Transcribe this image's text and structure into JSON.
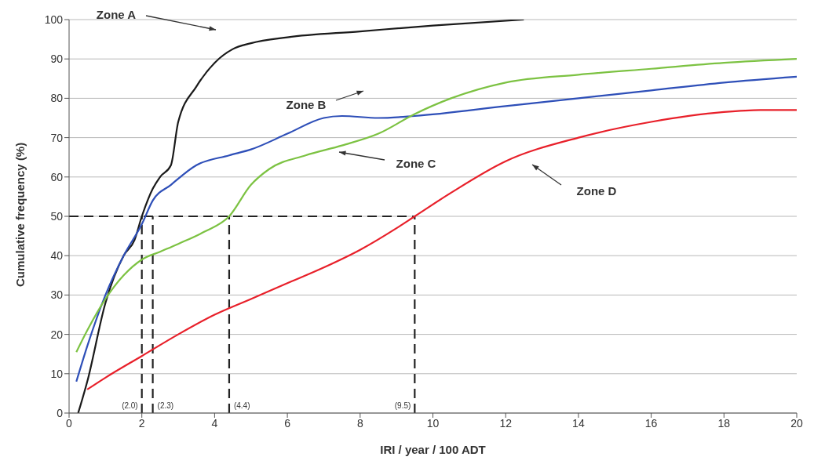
{
  "chart_data": {
    "type": "line",
    "xlabel": "IRI / year / 100 ADT",
    "ylabel": "Cumulative frequency (%)",
    "xlim": [
      0,
      20
    ],
    "xticks": [
      0,
      2,
      4,
      6,
      8,
      10,
      12,
      14,
      16,
      18,
      20
    ],
    "ylim": [
      0,
      100
    ],
    "yticks": [
      0,
      10,
      20,
      30,
      40,
      50,
      60,
      70,
      80,
      90,
      100
    ],
    "grid": "y",
    "line_style": "solid",
    "marker": "none",
    "series": [
      {
        "color": "#1a1a1a",
        "x": [
          0.25,
          0.5,
          1,
          1.5,
          1.8,
          2,
          2.3,
          2.5,
          2.8,
          3,
          3.5,
          4,
          4.5,
          5,
          6,
          8,
          10,
          12.5
        ],
        "values": [
          0,
          8,
          28,
          40,
          44,
          50,
          57,
          60,
          63,
          74,
          83,
          89,
          92.5,
          94,
          95.5,
          97,
          98.5,
          100
        ]
      },
      {
        "color": "#2e4fb8",
        "x": [
          0.2,
          0.5,
          1,
          1.5,
          2,
          2.3,
          2.8,
          3.5,
          4.4,
          5,
          6,
          7,
          7.5,
          8.5,
          9.5,
          12,
          14,
          16,
          18,
          20
        ],
        "values": [
          8,
          17,
          30,
          40,
          48,
          54,
          58,
          63,
          65.5,
          67,
          71,
          75,
          75.5,
          75,
          75.5,
          78,
          80,
          82,
          84,
          85.5
        ]
      },
      {
        "color": "#7cc242",
        "x": [
          0.2,
          0.5,
          1,
          1.5,
          2,
          2.5,
          3,
          3.7,
          4.4,
          5,
          5.5,
          6.5,
          7.5,
          8.5,
          9.5,
          10.5,
          12,
          14,
          16,
          18,
          20
        ],
        "values": [
          15.5,
          21,
          29,
          35,
          39,
          41,
          43,
          46,
          50,
          58,
          62,
          65.5,
          68,
          71,
          76,
          80,
          84,
          86,
          87.5,
          89,
          90
        ]
      },
      {
        "color": "#e8202a",
        "x": [
          0.5,
          1,
          2,
          3,
          4,
          5,
          6,
          7,
          8,
          9,
          9.5,
          10.5,
          12,
          14,
          16,
          18,
          19,
          20
        ],
        "values": [
          6,
          9,
          14.5,
          20,
          25,
          29,
          33,
          37,
          41.5,
          47,
          50,
          56,
          64,
          70,
          74,
          76.5,
          77,
          77
        ]
      }
    ],
    "ref_lines": [
      {
        "axis": "y",
        "value": 50,
        "color": "#222222",
        "line_style": "dashed"
      },
      {
        "axis": "x",
        "value": 2.0,
        "label": "(2.0)",
        "color": "#222222",
        "line_style": "dashed"
      },
      {
        "axis": "x",
        "value": 2.3,
        "label": "(2.3)",
        "color": "#222222",
        "line_style": "dashed"
      },
      {
        "axis": "x",
        "value": 4.4,
        "label": "(4.4)",
        "color": "#222222",
        "line_style": "dashed"
      },
      {
        "axis": "x",
        "value": 9.5,
        "label": "(9.5)",
        "color": "#222222",
        "line_style": "dashed"
      }
    ],
    "annotations": [
      "Zone A",
      "Zone B",
      "Zone C",
      "Zone D"
    ]
  }
}
